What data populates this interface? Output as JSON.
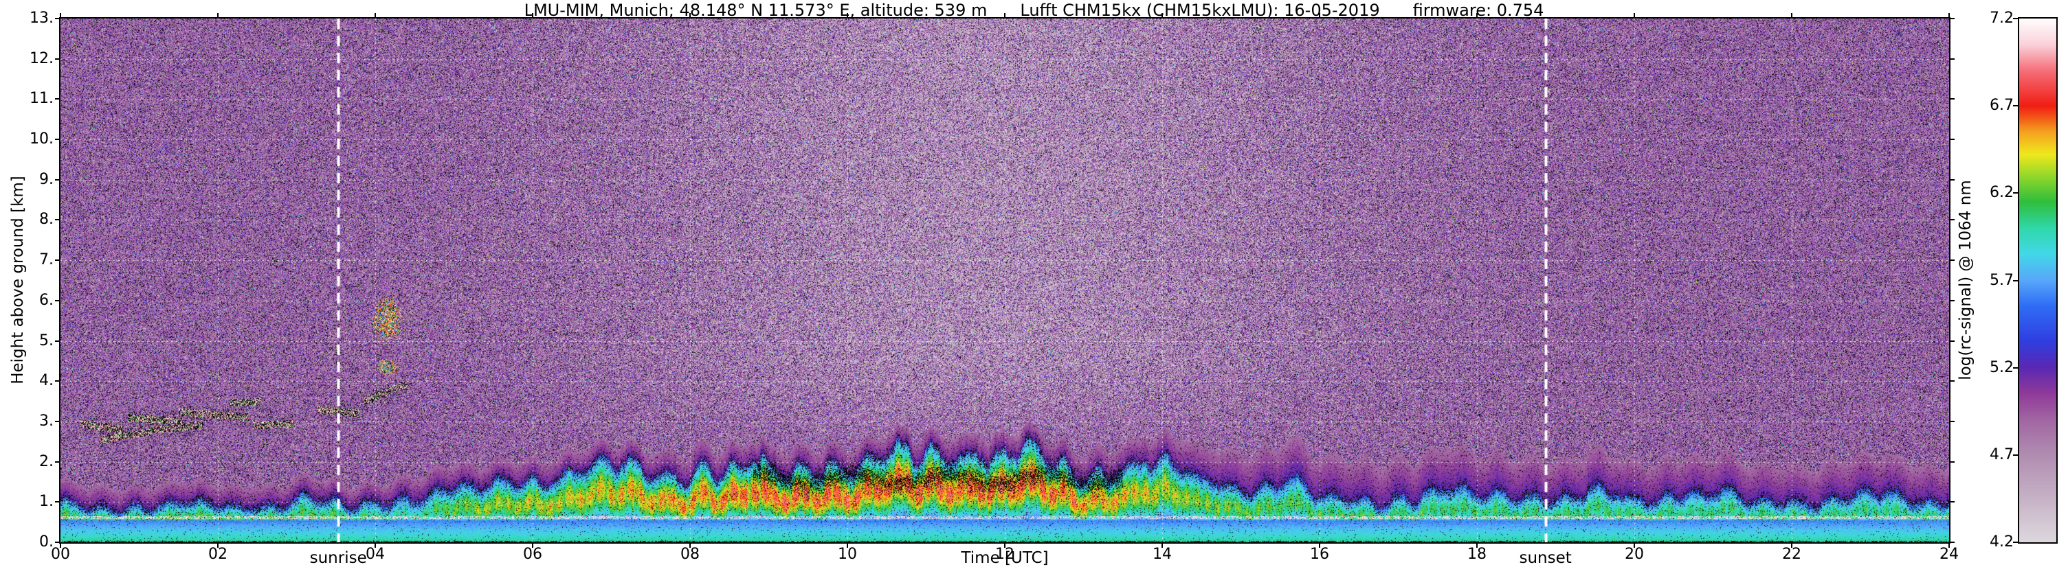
{
  "chart_data": {
    "type": "heatmap",
    "title_parts": [
      "LMU-MIM, Munich; 48.148° N 11.573° E, altitude: 539 m",
      "Lufft CHM15kx (CHM15kxLMU): 16-05-2019",
      "firmware: 0.754"
    ],
    "xlabel": "Time [UTC]",
    "ylabel": "Height above ground [km]",
    "x_range": [
      0,
      24
    ],
    "y_range": [
      0,
      13
    ],
    "x_ticks": [
      "00",
      "02",
      "04",
      "06",
      "08",
      "10",
      "12",
      "14",
      "16",
      "18",
      "20",
      "22",
      "24"
    ],
    "y_ticks": [
      "0.",
      "1.",
      "2.",
      "3.",
      "4.",
      "5.",
      "6.",
      "7.",
      "8.",
      "9.",
      "10.",
      "11.",
      "12.",
      "13."
    ],
    "grid": {
      "x_step": 2,
      "y_step": 1
    },
    "colorbar": {
      "label": "log(rc-signal) @ 1064 nm",
      "range": [
        4.2,
        7.2
      ],
      "ticks": [
        "7.2",
        "6.7",
        "6.2",
        "5.7",
        "5.2",
        "4.7",
        "4.2"
      ],
      "stops": [
        [
          4.2,
          "#ded8de"
        ],
        [
          4.45,
          "#c6b2c6"
        ],
        [
          4.7,
          "#b08cb0"
        ],
        [
          4.9,
          "#a266a2"
        ],
        [
          5.05,
          "#8f3a9a"
        ],
        [
          5.2,
          "#5a28b4"
        ],
        [
          5.35,
          "#2f3fe0"
        ],
        [
          5.55,
          "#2f6cf5"
        ],
        [
          5.7,
          "#58a8fa"
        ],
        [
          5.85,
          "#42d8e8"
        ],
        [
          6.0,
          "#2fd8a8"
        ],
        [
          6.15,
          "#2fbe3c"
        ],
        [
          6.3,
          "#96d82a"
        ],
        [
          6.42,
          "#f0e81e"
        ],
        [
          6.55,
          "#f5a01e"
        ],
        [
          6.7,
          "#f01e14"
        ],
        [
          6.9,
          "#f56e78"
        ],
        [
          7.05,
          "#fad2da"
        ],
        [
          7.2,
          "#ffffff"
        ]
      ]
    },
    "annotations": [
      {
        "label": "sunrise",
        "t": 3.53
      },
      {
        "label": "sunset",
        "t": 18.87
      }
    ],
    "layers": {
      "seed": 1337,
      "boundary_layer": {
        "core_top": [
          [
            0,
            1.05
          ],
          [
            3.5,
            1.0
          ],
          [
            4.5,
            1.05
          ],
          [
            6,
            1.45
          ],
          [
            7.5,
            1.8
          ],
          [
            9,
            2.0
          ],
          [
            12,
            2.1
          ],
          [
            13,
            2.05
          ],
          [
            14,
            1.75
          ],
          [
            15,
            1.45
          ],
          [
            16,
            1.25
          ],
          [
            18,
            1.15
          ],
          [
            21,
            1.15
          ],
          [
            24,
            1.1
          ]
        ],
        "purple_top": [
          [
            0,
            1.55
          ],
          [
            4,
            1.5
          ],
          [
            6,
            2.0
          ],
          [
            8,
            2.45
          ],
          [
            12,
            2.65
          ],
          [
            14,
            2.45
          ],
          [
            16,
            2.25
          ],
          [
            19,
            2.1
          ],
          [
            24,
            2.0
          ]
        ],
        "strength": [
          [
            0,
            0.62
          ],
          [
            3.5,
            0.62
          ],
          [
            4.1,
            0.55
          ],
          [
            4.4,
            0.45
          ],
          [
            5.0,
            0.7
          ],
          [
            5.5,
            0.78
          ],
          [
            6.5,
            0.9
          ],
          [
            8,
            1.05
          ],
          [
            9,
            1.15
          ],
          [
            12.5,
            1.15
          ],
          [
            13.5,
            0.95
          ],
          [
            14.5,
            0.75
          ],
          [
            16,
            0.6
          ],
          [
            24,
            0.55
          ]
        ]
      },
      "cloud_band": {
        "t0": 8.8,
        "t1": 13.5,
        "hc": 1.58,
        "hw": 0.22,
        "black_prob": 0.5
      },
      "white_line_h": 0.62,
      "clouds": [
        {
          "t0": 0.25,
          "t1": 0.8,
          "h0": 2.95,
          "h1": 2.8
        },
        {
          "t0": 0.5,
          "t1": 1.15,
          "h0": 2.55,
          "h1": 2.75
        },
        {
          "t0": 0.85,
          "t1": 1.55,
          "h0": 3.1,
          "h1": 3.0
        },
        {
          "t0": 1.15,
          "t1": 1.8,
          "h0": 2.8,
          "h1": 2.9
        },
        {
          "t0": 1.5,
          "t1": 2.4,
          "h0": 3.25,
          "h1": 3.1
        },
        {
          "t0": 2.15,
          "t1": 2.55,
          "h0": 3.45,
          "h1": 3.5
        },
        {
          "t0": 2.45,
          "t1": 2.95,
          "h0": 2.9,
          "h1": 2.95
        },
        {
          "t0": 3.25,
          "t1": 3.8,
          "h0": 3.3,
          "h1": 3.2
        },
        {
          "t0": 3.85,
          "t1": 4.4,
          "h0": 3.5,
          "h1": 3.95
        }
      ],
      "bright_clouds": [
        {
          "t0": 3.95,
          "t1": 4.35,
          "h0": 4.95,
          "h1": 6.15
        },
        {
          "t0": 4.0,
          "t1": 4.3,
          "h0": 4.15,
          "h1": 4.55
        }
      ]
    }
  }
}
